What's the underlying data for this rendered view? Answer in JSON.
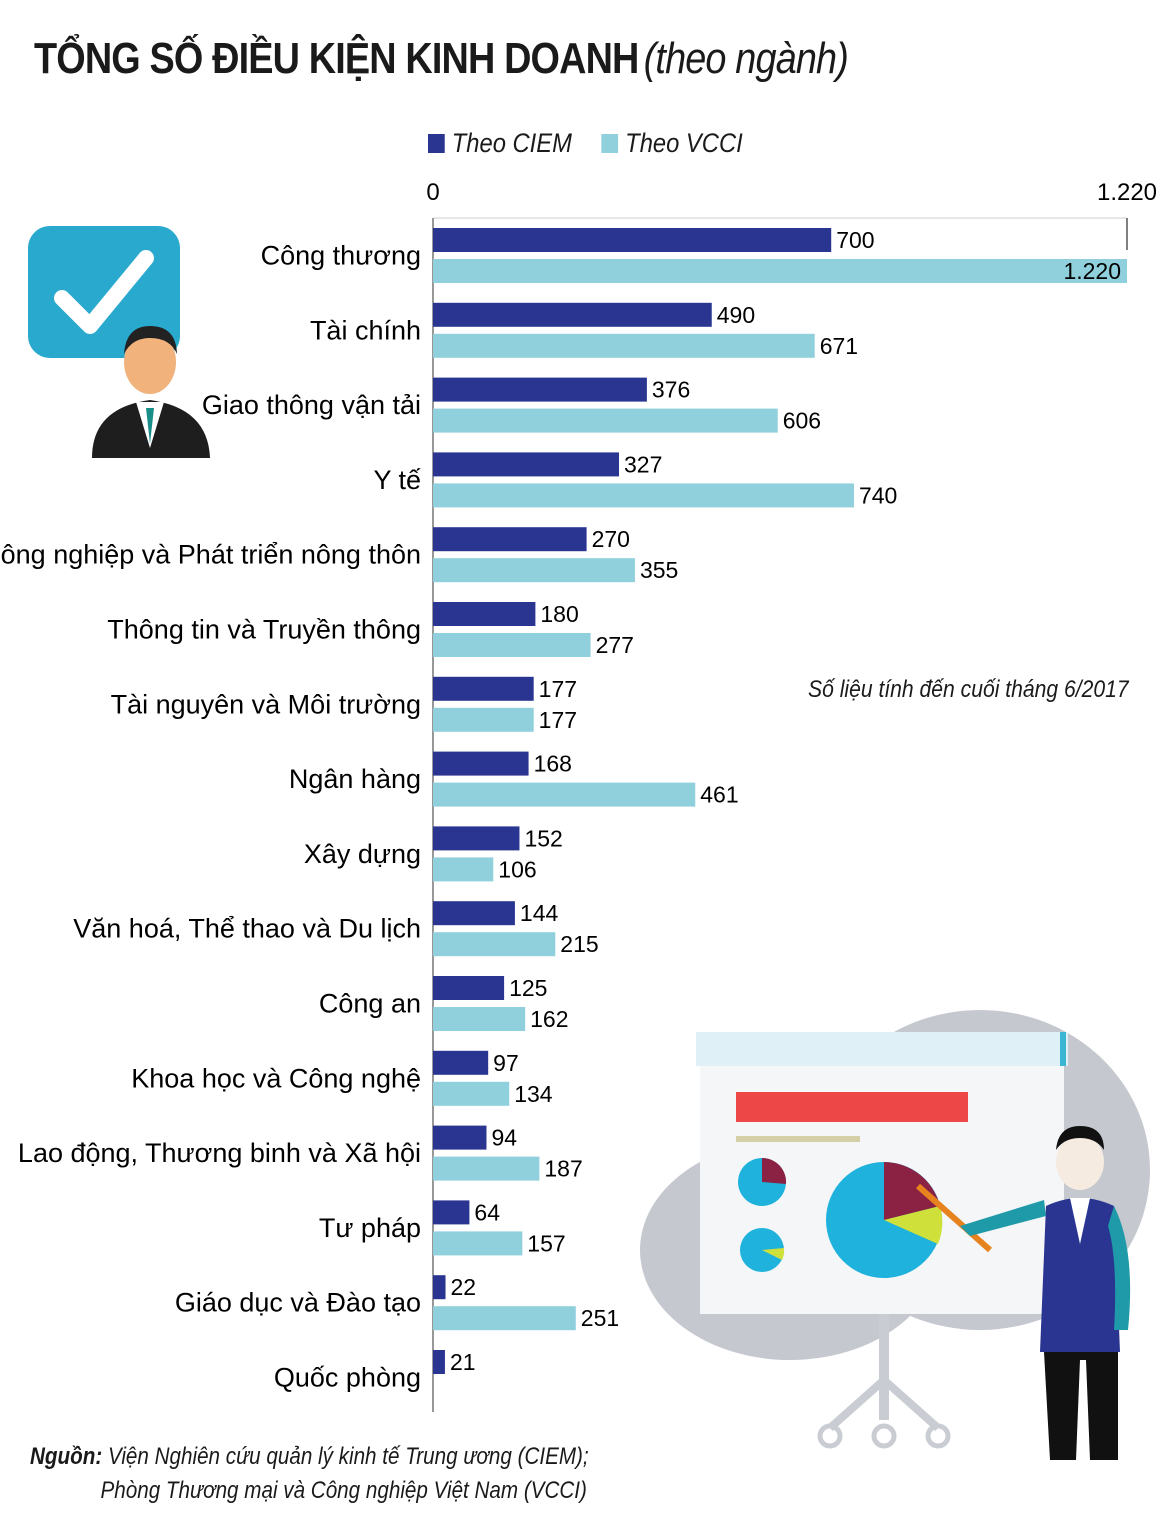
{
  "chart_data": {
    "type": "bar",
    "orientation": "horizontal",
    "title": "TỔNG SỐ ĐIỀU KIỆN KINH DOANH",
    "subtitle": "(theo ngành)",
    "categories": [
      "Công thương",
      "Tài chính",
      "Giao thông vận tải",
      "Y tế",
      "Nông nghiệp và Phát triển nông thôn",
      "Thông tin và Truyền thông",
      "Tài nguyên và Môi trường",
      "Ngân hàng",
      "Xây dựng",
      "Văn hoá, Thể thao và Du lịch",
      "Công an",
      "Khoa học và Công nghệ",
      "Lao động, Thương binh và Xã hội",
      "Tư pháp",
      "Giáo dục và Đào tạo",
      "Quốc phòng"
    ],
    "series": [
      {
        "name": "Theo CIEM",
        "color": "#2a3592",
        "values": [
          700,
          490,
          376,
          327,
          270,
          180,
          177,
          168,
          152,
          144,
          125,
          97,
          94,
          64,
          22,
          21
        ],
        "labels": [
          "700",
          "490",
          "376",
          "327",
          "270",
          "180",
          "177",
          "168",
          "152",
          "144",
          "125",
          "97",
          "94",
          "64",
          "22",
          "21"
        ]
      },
      {
        "name": "Theo VCCI",
        "color": "#8fd0dc",
        "values": [
          1220,
          671,
          606,
          740,
          355,
          277,
          177,
          461,
          106,
          215,
          162,
          134,
          187,
          157,
          251,
          null
        ],
        "labels": [
          "1.220",
          "671",
          "606",
          "740",
          "355",
          "277",
          "177",
          "461",
          "106",
          "215",
          "162",
          "134",
          "187",
          "157",
          "251",
          ""
        ]
      }
    ],
    "xlim": [
      0,
      1220
    ],
    "axis_ticks": [
      "0",
      "1.220"
    ],
    "annotation": "Số liệu tính đến cuối tháng 6/2017",
    "legend_position": "top"
  },
  "source": {
    "label": "Nguồn:",
    "line1": "Viện Nghiên cứu quản lý kinh tế Trung ương (CIEM);",
    "line2": "Phòng Thương mại và Công nghiệp Việt Nam (VCCI)"
  }
}
